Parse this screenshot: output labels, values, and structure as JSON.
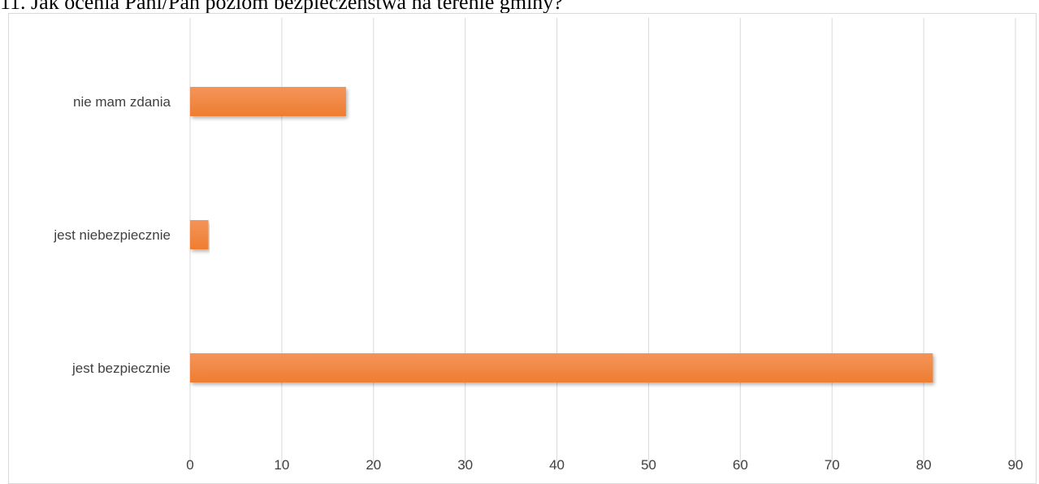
{
  "chart_data": {
    "type": "bar",
    "orientation": "horizontal",
    "title": "11. Jak ocenia Pani/Pan poziom bezpieczeństwa na terenie gminy?",
    "categories": [
      "jest bezpiecznie",
      "jest niebezpiecznie",
      "nie mam zdania"
    ],
    "values": [
      81,
      2,
      17
    ],
    "xlim": [
      0,
      90
    ],
    "xticks": [
      "0",
      "10",
      "20",
      "30",
      "40",
      "50",
      "60",
      "70",
      "80",
      "90"
    ],
    "grid": true,
    "legend": "none",
    "bar_color": "#ee7d31",
    "bar_color_light": "#f4945a",
    "grid_color": "#d9d9d9"
  }
}
